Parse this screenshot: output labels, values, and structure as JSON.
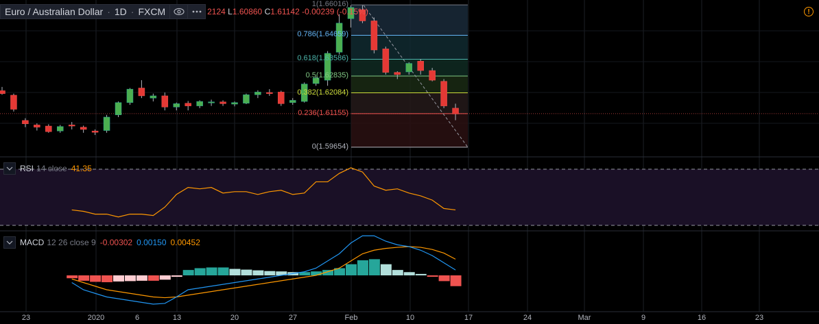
{
  "symbol": {
    "name": "Euro / Australian Dollar",
    "interval": "1D",
    "exchange": "FXCM"
  },
  "ohlc": {
    "open_partial": "2124",
    "low_label": "L",
    "low": "1.60860",
    "close_label": "C",
    "close": "1.61142",
    "change": "-0.00239 (-0.15%)"
  },
  "icons": {
    "visibility": "eye-icon",
    "more": "more-horizontal-icon",
    "alert": "alert-icon",
    "collapse": "chevron-down-icon"
  },
  "alert_glyph": "!",
  "fib_levels": [
    {
      "label": "1(1.66016)",
      "value": 1.66016,
      "color": "#787b86"
    },
    {
      "label": "0.786(1.64659)",
      "value": 1.64659,
      "color": "#64b5f6"
    },
    {
      "label": "0.618(1.63586)",
      "value": 1.63586,
      "color": "#4db6ac"
    },
    {
      "label": "0.5(1.62835)",
      "value": 1.62835,
      "color": "#81c784"
    },
    {
      "label": "0.382(1.62084)",
      "value": 1.62084,
      "color": "#cddc39"
    },
    {
      "label": "0.236(1.61155)",
      "value": 1.61155,
      "color": "#ef5350"
    },
    {
      "label": "0(1.59654)",
      "value": 1.59654,
      "color": "#b2b5be"
    }
  ],
  "rsi": {
    "name": "RSI",
    "params": "14 close",
    "value": "41.35",
    "color": "#ff9800",
    "values": [
      41,
      40,
      38,
      38,
      36,
      38,
      38,
      37,
      43,
      52,
      57,
      56,
      57,
      53,
      54,
      54,
      52,
      54,
      55,
      52,
      53,
      61,
      61,
      67,
      71,
      68,
      58,
      55,
      56,
      53,
      51,
      48,
      42,
      41
    ]
  },
  "macd": {
    "name": "MACD",
    "params": "12 26 close 9",
    "hist_value": "-0.00302",
    "macd_value": "0.00150",
    "signal_value": "0.00452",
    "hist_color": "#ff9800",
    "macd_color": "#2196f3",
    "signal_color": "#ff9800",
    "macd_line": [
      -0.002,
      -0.004,
      -0.005,
      -0.006,
      -0.0065,
      -0.007,
      -0.0075,
      -0.008,
      -0.0078,
      -0.006,
      -0.004,
      -0.0035,
      -0.003,
      -0.0025,
      -0.002,
      -0.0015,
      -0.001,
      -0.0005,
      0.0,
      0.0005,
      0.001,
      0.002,
      0.004,
      0.006,
      0.009,
      0.011,
      0.011,
      0.0095,
      0.0085,
      0.008,
      0.007,
      0.0055,
      0.0035,
      0.0015
    ],
    "signal_line": [
      -0.001,
      -0.002,
      -0.003,
      -0.004,
      -0.0045,
      -0.005,
      -0.0055,
      -0.006,
      -0.0062,
      -0.006,
      -0.0055,
      -0.005,
      -0.0045,
      -0.004,
      -0.0035,
      -0.003,
      -0.0025,
      -0.002,
      -0.0015,
      -0.001,
      -0.0005,
      0.0,
      0.001,
      0.002,
      0.004,
      0.006,
      0.007,
      0.0075,
      0.0078,
      0.008,
      0.0078,
      0.0072,
      0.0062,
      0.0045
    ],
    "histogram": [
      -0.0008,
      -0.0015,
      -0.0018,
      -0.0019,
      -0.0017,
      -0.0016,
      -0.0015,
      -0.0015,
      -0.0012,
      -0.0004,
      0.0015,
      0.002,
      0.0022,
      0.0022,
      0.0018,
      0.0016,
      0.0014,
      0.0012,
      0.0011,
      0.0009,
      0.0009,
      0.0011,
      0.0015,
      0.002,
      0.0031,
      0.0042,
      0.0045,
      0.0031,
      0.0015,
      0.0009,
      0.0004,
      -0.0004,
      -0.0016,
      -0.003
    ]
  },
  "price": {
    "candles": [
      {
        "o": 1.6218,
        "h": 1.6235,
        "l": 1.62,
        "c": 1.6205
      },
      {
        "o": 1.6198,
        "h": 1.6205,
        "l": 1.6125,
        "c": 1.6135
      },
      {
        "o": 1.6085,
        "h": 1.6095,
        "l": 1.6055,
        "c": 1.607
      },
      {
        "o": 1.6065,
        "h": 1.6072,
        "l": 1.604,
        "c": 1.6055
      },
      {
        "o": 1.606,
        "h": 1.6068,
        "l": 1.603,
        "c": 1.6035
      },
      {
        "o": 1.6038,
        "h": 1.6065,
        "l": 1.603,
        "c": 1.6058
      },
      {
        "o": 1.6065,
        "h": 1.6078,
        "l": 1.6045,
        "c": 1.606
      },
      {
        "o": 1.6055,
        "h": 1.6062,
        "l": 1.603,
        "c": 1.6045
      },
      {
        "o": 1.6038,
        "h": 1.6045,
        "l": 1.602,
        "c": 1.6032
      },
      {
        "o": 1.604,
        "h": 1.611,
        "l": 1.603,
        "c": 1.61
      },
      {
        "o": 1.611,
        "h": 1.617,
        "l": 1.61,
        "c": 1.6165
      },
      {
        "o": 1.6165,
        "h": 1.623,
        "l": 1.6155,
        "c": 1.6225
      },
      {
        "o": 1.623,
        "h": 1.6265,
        "l": 1.6185,
        "c": 1.6195
      },
      {
        "o": 1.6185,
        "h": 1.6205,
        "l": 1.617,
        "c": 1.6195
      },
      {
        "o": 1.6195,
        "h": 1.621,
        "l": 1.613,
        "c": 1.6145
      },
      {
        "o": 1.6145,
        "h": 1.6165,
        "l": 1.613,
        "c": 1.616
      },
      {
        "o": 1.6162,
        "h": 1.6172,
        "l": 1.613,
        "c": 1.615
      },
      {
        "o": 1.615,
        "h": 1.6175,
        "l": 1.614,
        "c": 1.617
      },
      {
        "o": 1.6168,
        "h": 1.6178,
        "l": 1.615,
        "c": 1.6168
      },
      {
        "o": 1.6168,
        "h": 1.6175,
        "l": 1.615,
        "c": 1.616
      },
      {
        "o": 1.6158,
        "h": 1.617,
        "l": 1.6148,
        "c": 1.6165
      },
      {
        "o": 1.6162,
        "h": 1.6205,
        "l": 1.6158,
        "c": 1.62
      },
      {
        "o": 1.62,
        "h": 1.622,
        "l": 1.6185,
        "c": 1.6212
      },
      {
        "o": 1.621,
        "h": 1.6225,
        "l": 1.6195,
        "c": 1.6205
      },
      {
        "o": 1.6212,
        "h": 1.6218,
        "l": 1.615,
        "c": 1.616
      },
      {
        "o": 1.6165,
        "h": 1.6185,
        "l": 1.6155,
        "c": 1.6175
      },
      {
        "o": 1.617,
        "h": 1.6255,
        "l": 1.6165,
        "c": 1.6248
      },
      {
        "o": 1.625,
        "h": 1.628,
        "l": 1.624,
        "c": 1.6275
      },
      {
        "o": 1.6265,
        "h": 1.6395,
        "l": 1.624,
        "c": 1.6385
      },
      {
        "o": 1.639,
        "h": 1.656,
        "l": 1.638,
        "c": 1.652
      },
      {
        "o": 1.654,
        "h": 1.66,
        "l": 1.65,
        "c": 1.659
      },
      {
        "o": 1.658,
        "h": 1.66,
        "l": 1.652,
        "c": 1.653
      },
      {
        "o": 1.653,
        "h": 1.6545,
        "l": 1.6385,
        "c": 1.64
      },
      {
        "o": 1.6405,
        "h": 1.6415,
        "l": 1.629,
        "c": 1.63
      },
      {
        "o": 1.63,
        "h": 1.6305,
        "l": 1.627,
        "c": 1.629
      },
      {
        "o": 1.6302,
        "h": 1.6345,
        "l": 1.629,
        "c": 1.634
      },
      {
        "o": 1.635,
        "h": 1.636,
        "l": 1.629,
        "c": 1.6308
      },
      {
        "o": 1.6308,
        "h": 1.632,
        "l": 1.626,
        "c": 1.6265
      },
      {
        "o": 1.626,
        "h": 1.627,
        "l": 1.614,
        "c": 1.615
      },
      {
        "o": 1.614,
        "h": 1.616,
        "l": 1.6086,
        "c": 1.6114
      }
    ]
  },
  "xaxis": {
    "ticks": [
      "23",
      "2020",
      "6",
      "13",
      "20",
      "27",
      "Feb",
      "10",
      "17",
      "24",
      "Mar",
      "9",
      "16",
      "23"
    ]
  }
}
